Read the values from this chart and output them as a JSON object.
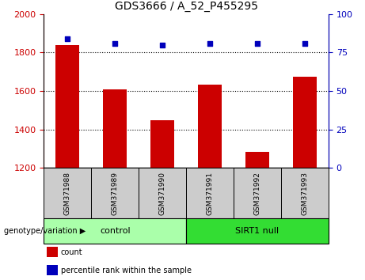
{
  "title": "GDS3666 / A_52_P455295",
  "categories": [
    "GSM371988",
    "GSM371989",
    "GSM371990",
    "GSM371991",
    "GSM371992",
    "GSM371993"
  ],
  "bar_values": [
    1840,
    1608,
    1448,
    1635,
    1285,
    1675
  ],
  "scatter_values": [
    84,
    81,
    80,
    81,
    81,
    81
  ],
  "ylim_left": [
    1200,
    2000
  ],
  "ylim_right": [
    0,
    100
  ],
  "yticks_left": [
    1200,
    1400,
    1600,
    1800,
    2000
  ],
  "yticks_right": [
    0,
    25,
    50,
    75,
    100
  ],
  "bar_color": "#CC0000",
  "scatter_color": "#0000BB",
  "group_labels": [
    "control",
    "SIRT1 null"
  ],
  "group_colors": [
    "#AAFFAA",
    "#33DD33"
  ],
  "genotype_label": "genotype/variation",
  "legend_items": [
    "count",
    "percentile rank within the sample"
  ],
  "legend_colors": [
    "#CC0000",
    "#0000BB"
  ],
  "tick_label_color_left": "#CC0000",
  "tick_label_color_right": "#0000BB",
  "sample_box_color": "#CCCCCC",
  "xlim": [
    -0.5,
    5.5
  ]
}
